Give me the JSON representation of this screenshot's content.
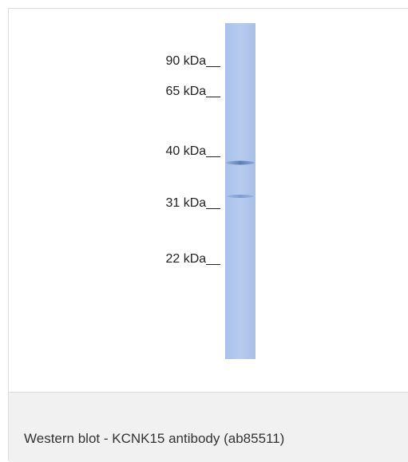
{
  "markers": [
    "90 kDa__",
    "65 kDa__",
    "40 kDa__",
    "31 kDa__",
    "22 kDa__"
  ],
  "caption": "Western blot - KCNK15 antibody (ab85511)"
}
